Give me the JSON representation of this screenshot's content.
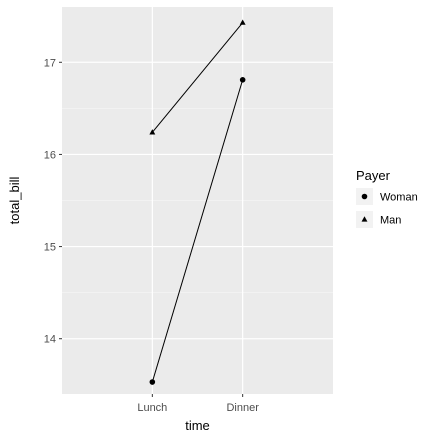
{
  "chart_data": {
    "type": "line",
    "title": "",
    "xlabel": "time",
    "ylabel": "total_bill",
    "categories": [
      "Lunch",
      "Dinner"
    ],
    "y_ticks": [
      14,
      15,
      16,
      17
    ],
    "ylim": [
      13.4,
      17.6
    ],
    "grid": true,
    "legend": {
      "title": "Payer",
      "placement": "right",
      "entries": [
        {
          "name": "Woman",
          "marker": "circle"
        },
        {
          "name": "Man",
          "marker": "triangle"
        }
      ]
    },
    "series": [
      {
        "name": "Woman",
        "marker": "circle",
        "values": [
          13.53,
          16.81
        ]
      },
      {
        "name": "Man",
        "marker": "triangle",
        "values": [
          16.24,
          17.43
        ]
      }
    ],
    "colors": {
      "panel_bg": "#ebebeb",
      "grid_major": "#ffffff",
      "grid_minor": "#f5f5f5",
      "line": "#000000",
      "tick_text": "#4d4d4d"
    }
  }
}
